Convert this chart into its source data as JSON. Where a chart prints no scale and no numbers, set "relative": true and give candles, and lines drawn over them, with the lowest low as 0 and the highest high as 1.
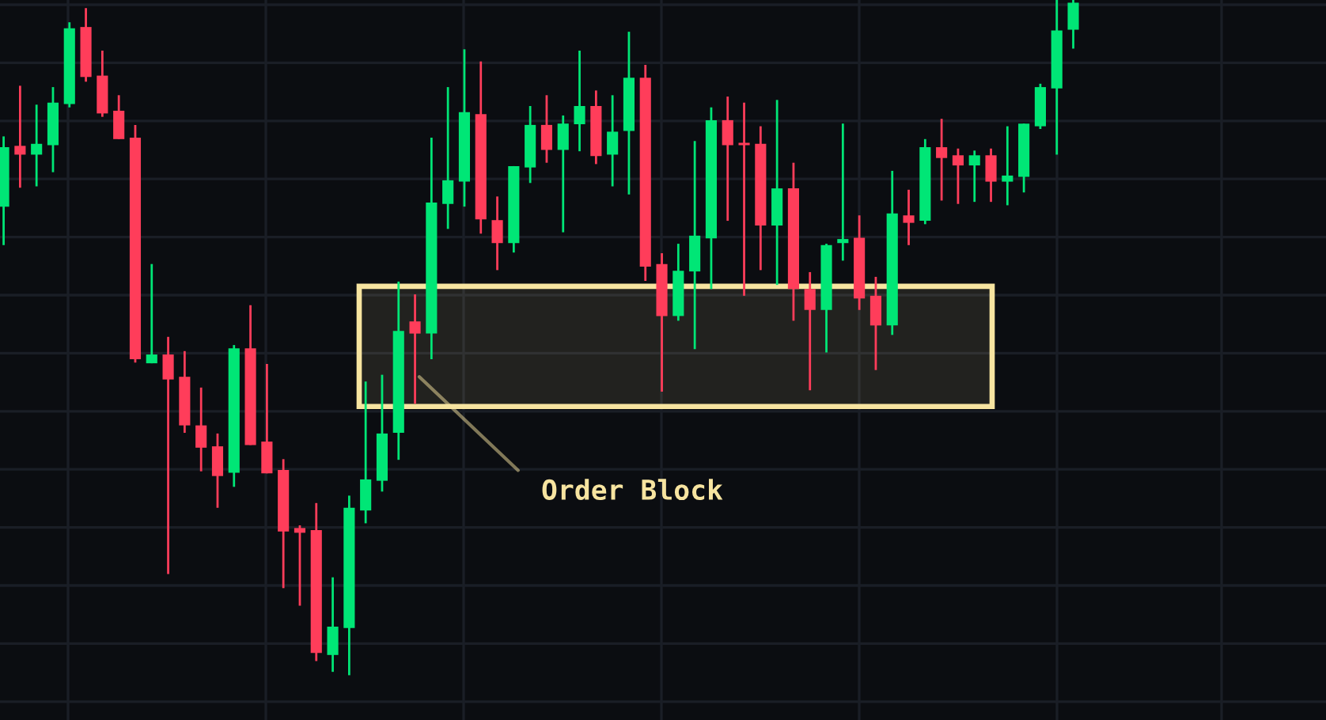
{
  "chart_data": {
    "type": "candlestick",
    "relative": true,
    "grid": true,
    "categories": [
      null,
      null,
      null,
      null,
      null,
      null,
      null,
      null,
      null,
      null,
      null,
      null,
      null,
      null,
      null,
      null,
      null,
      null,
      null,
      null,
      null,
      null,
      null,
      null,
      null,
      null,
      null,
      null,
      null,
      null,
      null,
      null,
      null,
      null,
      null,
      null,
      null,
      null,
      null,
      null,
      null,
      null,
      null,
      null,
      null,
      null,
      null,
      null,
      null,
      null,
      null,
      null,
      null,
      null,
      null,
      null,
      null,
      null,
      null,
      null,
      null,
      null,
      null,
      null,
      null,
      null
    ],
    "ohlc": [
      [
        0.694,
        0.798,
        0.637,
        0.782
      ],
      [
        0.784,
        0.873,
        0.722,
        0.771
      ],
      [
        0.771,
        0.845,
        0.724,
        0.787
      ],
      [
        0.785,
        0.871,
        0.745,
        0.848
      ],
      [
        0.846,
        0.967,
        0.841,
        0.958
      ],
      [
        0.96,
        0.988,
        0.879,
        0.886
      ],
      [
        0.888,
        0.925,
        0.827,
        0.832
      ],
      [
        0.836,
        0.859,
        0.794,
        0.794
      ],
      [
        0.796,
        0.815,
        0.463,
        0.468
      ],
      [
        0.462,
        0.609,
        0.462,
        0.475
      ],
      [
        0.475,
        0.501,
        0.15,
        0.438
      ],
      [
        0.442,
        0.48,
        0.359,
        0.37
      ],
      [
        0.37,
        0.426,
        0.302,
        0.337
      ],
      [
        0.339,
        0.358,
        0.248,
        0.295
      ],
      [
        0.3,
        0.489,
        0.279,
        0.484
      ],
      [
        0.484,
        0.548,
        0.341,
        0.341
      ],
      [
        0.346,
        0.461,
        0.299,
        0.299
      ],
      [
        0.304,
        0.32,
        0.129,
        0.213
      ],
      [
        0.218,
        0.222,
        0.103,
        0.211
      ],
      [
        0.215,
        0.255,
        0.021,
        0.033
      ],
      [
        0.03,
        0.145,
        0.005,
        0.072
      ],
      [
        0.07,
        0.266,
        0,
        0.248
      ],
      [
        0.244,
        0.435,
        0.225,
        0.29
      ],
      [
        0.288,
        0.445,
        0.272,
        0.358
      ],
      [
        0.359,
        0.583,
        0.319,
        0.51
      ],
      [
        0.524,
        0.564,
        0.402,
        0.506
      ],
      [
        0.506,
        0.796,
        0.468,
        0.7
      ],
      [
        0.698,
        0.871,
        0.661,
        0.733
      ],
      [
        0.731,
        0.927,
        0.694,
        0.834
      ],
      [
        0.831,
        0.909,
        0.654,
        0.675
      ],
      [
        0.674,
        0.709,
        0.6,
        0.64
      ],
      [
        0.64,
        0.754,
        0.626,
        0.754
      ],
      [
        0.752,
        0.843,
        0.729,
        0.815
      ],
      [
        0.815,
        0.859,
        0.759,
        0.778
      ],
      [
        0.778,
        0.829,
        0.656,
        0.817
      ],
      [
        0.816,
        0.925,
        0.776,
        0.843
      ],
      [
        0.843,
        0.866,
        0.757,
        0.769
      ],
      [
        0.771,
        0.859,
        0.724,
        0.805
      ],
      [
        0.806,
        0.953,
        0.712,
        0.885
      ],
      [
        0.885,
        0.904,
        0.584,
        0.605
      ],
      [
        0.609,
        0.625,
        0.42,
        0.532
      ],
      [
        0.532,
        0.639,
        0.525,
        0.599
      ],
      [
        0.598,
        0.791,
        0.483,
        0.651
      ],
      [
        0.647,
        0.841,
        0.572,
        0.822
      ],
      [
        0.822,
        0.857,
        0.673,
        0.785
      ],
      [
        0.787,
        0.848,
        0.562,
        0.785
      ],
      [
        0.787,
        0.813,
        0.6,
        0.666
      ],
      [
        0.666,
        0.852,
        0.578,
        0.721
      ],
      [
        0.721,
        0.759,
        0.525,
        0.572
      ],
      [
        0.572,
        0.597,
        0.422,
        0.541
      ],
      [
        0.541,
        0.639,
        0.478,
        0.637
      ],
      [
        0.64,
        0.817,
        0.614,
        0.646
      ],
      [
        0.648,
        0.681,
        0.541,
        0.558
      ],
      [
        0.562,
        0.59,
        0.452,
        0.518
      ],
      [
        0.518,
        0.747,
        0.504,
        0.684
      ],
      [
        0.681,
        0.719,
        0.637,
        0.67
      ],
      [
        0.673,
        0.794,
        0.668,
        0.782
      ],
      [
        0.782,
        0.824,
        0.703,
        0.766
      ],
      [
        0.77,
        0.78,
        0.698,
        0.755
      ],
      [
        0.755,
        0.777,
        0.701,
        0.77
      ],
      [
        0.77,
        0.78,
        0.701,
        0.731
      ],
      [
        0.731,
        0.813,
        0.696,
        0.74
      ],
      [
        0.738,
        0.817,
        0.715,
        0.817
      ],
      [
        0.813,
        0.876,
        0.809,
        0.871
      ],
      [
        0.869,
        1,
        0.771,
        0.955
      ],
      [
        0.956,
        1,
        0.928,
        0.996
      ]
    ],
    "colors": [
      "#00e676",
      "#ff3d5a",
      "#00e676",
      "#00e676",
      "#00e676",
      "#ff3d5a",
      "#ff3d5a",
      "#ff3d5a",
      "#ff3d5a",
      "#00e676",
      "#ff3d5a",
      "#ff3d5a",
      "#ff3d5a",
      "#ff3d5a",
      "#00e676",
      "#ff3d5a",
      "#ff3d5a",
      "#ff3d5a",
      "#ff3d5a",
      "#ff3d5a",
      "#00e676",
      "#00e676",
      "#00e676",
      "#00e676",
      "#00e676",
      "#ff3d5a",
      "#00e676",
      "#00e676",
      "#00e676",
      "#ff3d5a",
      "#ff3d5a",
      "#00e676",
      "#00e676",
      "#ff3d5a",
      "#00e676",
      "#00e676",
      "#ff3d5a",
      "#00e676",
      "#00e676",
      "#ff3d5a",
      "#ff3d5a",
      "#00e676",
      "#00e676",
      "#00e676",
      "#ff3d5a",
      "#ff3d5a",
      "#ff3d5a",
      "#00e676",
      "#ff3d5a",
      "#ff3d5a",
      "#00e676",
      "#00e676",
      "#ff3d5a",
      "#ff3d5a",
      "#00e676",
      "#ff3d5a",
      "#00e676",
      "#ff3d5a",
      "#ff3d5a",
      "#00e676",
      "#ff3d5a",
      "#00e676",
      "#00e676",
      "#00e676",
      "#00e676",
      "#00e676"
    ],
    "bands": [
      {
        "axis": "y",
        "from": 0.398,
        "to": 0.576,
        "label": "Order Block",
        "color": "#f7e4a0"
      }
    ]
  }
}
